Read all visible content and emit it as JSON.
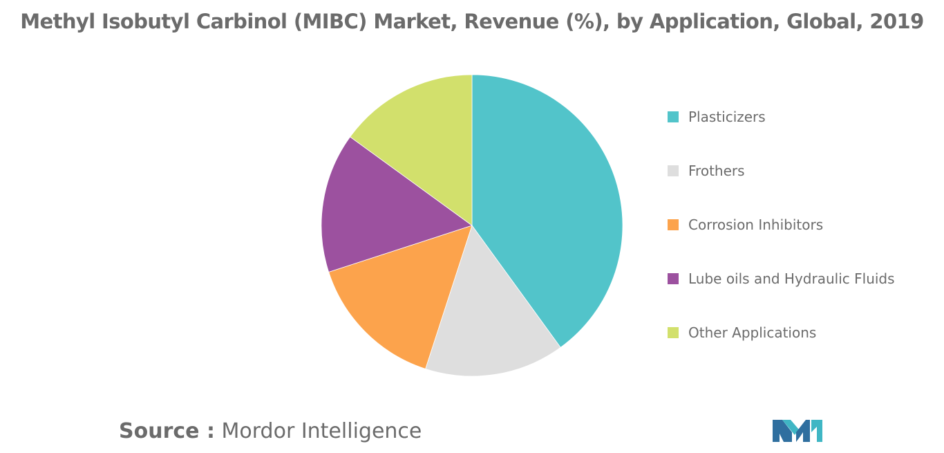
{
  "title": "Methyl Isobutyl Carbinol (MIBC) Market, Revenue (%), by Application, Global, 2019",
  "source": {
    "label": "Source :",
    "value": "Mordor Intelligence"
  },
  "logo_icon": "mordor-intelligence-logo-icon",
  "chart_data": {
    "type": "pie",
    "title": "Methyl Isobutyl Carbinol (MIBC) Market, Revenue (%), by Application, Global, 2019",
    "categories": [
      "Plasticizers",
      "Frothers",
      "Corrosion Inhibitors",
      "Lube oils and Hydraulic Fluids",
      "Other Applications"
    ],
    "values": [
      40,
      15,
      15,
      15,
      15
    ],
    "colors": [
      "#52c4ca",
      "#dedede",
      "#fca34c",
      "#9c519f",
      "#d2e06c"
    ],
    "legend_position": "right",
    "start": "top, clockwise"
  }
}
